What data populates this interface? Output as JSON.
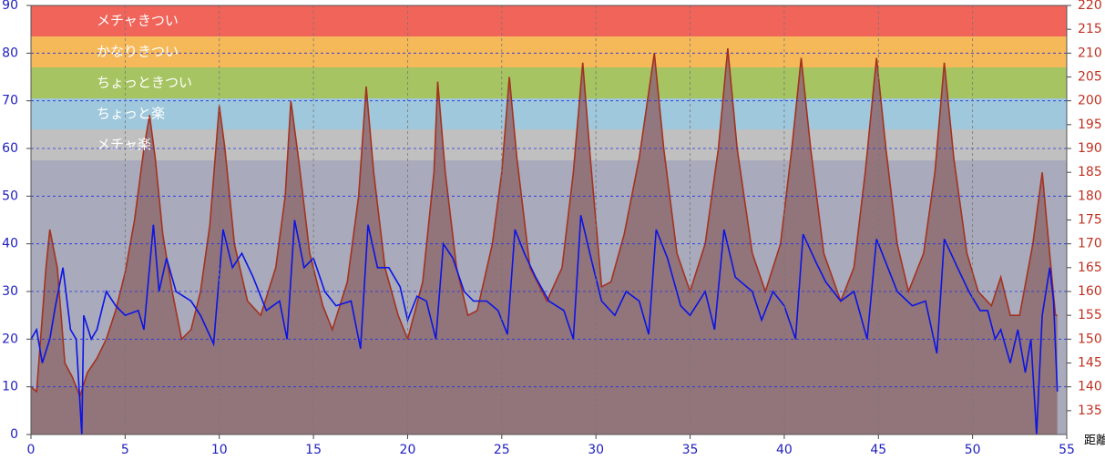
{
  "chart_data": {
    "type": "line",
    "x_label": "距離",
    "xlim": [
      0,
      55
    ],
    "xticks": [
      0,
      5,
      10,
      15,
      20,
      25,
      30,
      35,
      40,
      45,
      50,
      55
    ],
    "ylim": [
      0,
      90
    ],
    "yticks": [
      0,
      10,
      20,
      30,
      40,
      50,
      60,
      70,
      80,
      90
    ],
    "y2lim": [
      130,
      220
    ],
    "y2ticks": [
      135,
      140,
      145,
      150,
      155,
      160,
      165,
      170,
      175,
      180,
      185,
      190,
      195,
      200,
      205,
      210,
      215,
      220
    ],
    "grid": true,
    "plot_background": "#a9aabb",
    "zones": [
      {
        "label": "メチャきつい",
        "from": 213.5,
        "to": 220,
        "color": "#f0645a"
      },
      {
        "label": "かなりきつい",
        "from": 207,
        "to": 213.5,
        "color": "#f5b95a"
      },
      {
        "label": "ちょっときつい",
        "from": 200.5,
        "to": 207,
        "color": "#a6c462"
      },
      {
        "label": "ちょっと楽",
        "from": 194,
        "to": 200.5,
        "color": "#a0c8dc"
      },
      {
        "label": "メチャ楽",
        "from": 187.5,
        "to": 194,
        "color": "#c0c0c0"
      }
    ],
    "series": [
      {
        "axis": "y2",
        "fill": "area",
        "color": "#a3321e",
        "fill_color": "#8f6e74",
        "x": [
          0,
          0.3,
          0.8,
          1.0,
          1.4,
          1.8,
          2.2,
          2.6,
          3.0,
          3.5,
          4,
          4.5,
          5,
          5.5,
          6,
          6.3,
          6.6,
          7,
          7.5,
          8,
          8.5,
          9,
          9.5,
          10,
          10.3,
          10.8,
          11.5,
          12.2,
          13,
          13.5,
          13.8,
          14.2,
          14.8,
          15.5,
          16,
          16.8,
          17.4,
          17.8,
          18.2,
          18.8,
          19.5,
          20,
          20.8,
          21.4,
          21.6,
          22,
          22.6,
          23.2,
          23.7,
          24.5,
          25,
          25.4,
          25.8,
          26.5,
          27.4,
          28.2,
          28.8,
          29.3,
          29.7,
          30.3,
          30.8,
          31.5,
          32.3,
          33.1,
          33.6,
          34.3,
          35,
          35.8,
          36.5,
          37,
          37.5,
          38.3,
          39,
          39.8,
          40.4,
          40.9,
          41.4,
          42.1,
          43,
          43.7,
          44.3,
          44.9,
          45.4,
          46,
          46.6,
          47.4,
          48,
          48.5,
          49,
          49.7,
          50.3,
          51,
          51.5,
          52,
          52.5,
          53.2,
          53.7,
          54,
          54.4,
          54.5
        ],
        "values": [
          140,
          139,
          165,
          173,
          165,
          145,
          142,
          138,
          143,
          146,
          150,
          156,
          164,
          175,
          190,
          197,
          188,
          172,
          160,
          150,
          152,
          160,
          174,
          199,
          190,
          170,
          158,
          155,
          165,
          180,
          200,
          188,
          168,
          157,
          152,
          162,
          180,
          203,
          185,
          165,
          155,
          150,
          162,
          185,
          204,
          185,
          165,
          155,
          156,
          170,
          185,
          205,
          188,
          165,
          158,
          165,
          185,
          208,
          188,
          161,
          162,
          172,
          188,
          210,
          190,
          168,
          160,
          170,
          190,
          211,
          190,
          168,
          160,
          170,
          190,
          209,
          190,
          168,
          158,
          165,
          185,
          209,
          190,
          170,
          160,
          168,
          185,
          208,
          188,
          168,
          160,
          157,
          163,
          155,
          155,
          170,
          185,
          172,
          155,
          155
        ]
      },
      {
        "color": "#0a14e6",
        "x": [
          0,
          0.3,
          0.6,
          1,
          1.3,
          1.7,
          2.1,
          2.4,
          2.7,
          2.8,
          3.2,
          3.5,
          4,
          4.5,
          5,
          5.7,
          6,
          6.5,
          6.8,
          7.2,
          7.7,
          8.5,
          9,
          9.7,
          10.2,
          10.7,
          11.2,
          11.8,
          12.5,
          13.2,
          13.6,
          14,
          14.5,
          15,
          15.6,
          16.2,
          17,
          17.5,
          17.9,
          18.4,
          19,
          19.6,
          20,
          20.5,
          21,
          21.5,
          21.9,
          22.4,
          23,
          23.5,
          24.2,
          24.8,
          25.3,
          25.7,
          26.2,
          26.8,
          27.5,
          28.3,
          28.8,
          29.2,
          29.8,
          30.3,
          31,
          31.6,
          32.3,
          32.8,
          33.2,
          33.8,
          34.5,
          35,
          35.8,
          36.3,
          36.8,
          37.4,
          38.3,
          38.8,
          39.4,
          40,
          40.6,
          41,
          41.7,
          42.2,
          43,
          43.7,
          44.4,
          44.9,
          45.5,
          46,
          46.8,
          47.5,
          48.1,
          48.5,
          49.2,
          49.8,
          50.4,
          50.8,
          51.2,
          51.5,
          52,
          52.4,
          52.8,
          53.1,
          53.4,
          53.7,
          54.1,
          54.3,
          54.5
        ],
        "values": [
          20,
          22,
          15,
          20,
          27,
          35,
          22,
          20,
          0,
          25,
          20,
          22,
          30,
          27,
          25,
          26,
          22,
          44,
          30,
          37,
          30,
          28,
          25,
          19,
          43,
          35,
          38,
          33,
          26,
          28,
          20,
          45,
          35,
          37,
          30,
          27,
          28,
          18,
          44,
          35,
          35,
          31,
          24,
          29,
          28,
          20,
          40,
          37,
          30,
          28,
          28,
          26,
          21,
          43,
          38,
          33,
          28,
          26,
          20,
          46,
          36,
          28,
          25,
          30,
          28,
          21,
          43,
          37,
          27,
          25,
          30,
          22,
          43,
          33,
          30,
          24,
          30,
          27,
          20,
          42,
          36,
          32,
          28,
          30,
          20,
          41,
          35,
          30,
          27,
          28,
          17,
          41,
          35,
          30,
          26,
          26,
          20,
          22,
          15,
          22,
          13,
          20,
          0,
          25,
          35,
          28,
          9
        ]
      }
    ]
  }
}
